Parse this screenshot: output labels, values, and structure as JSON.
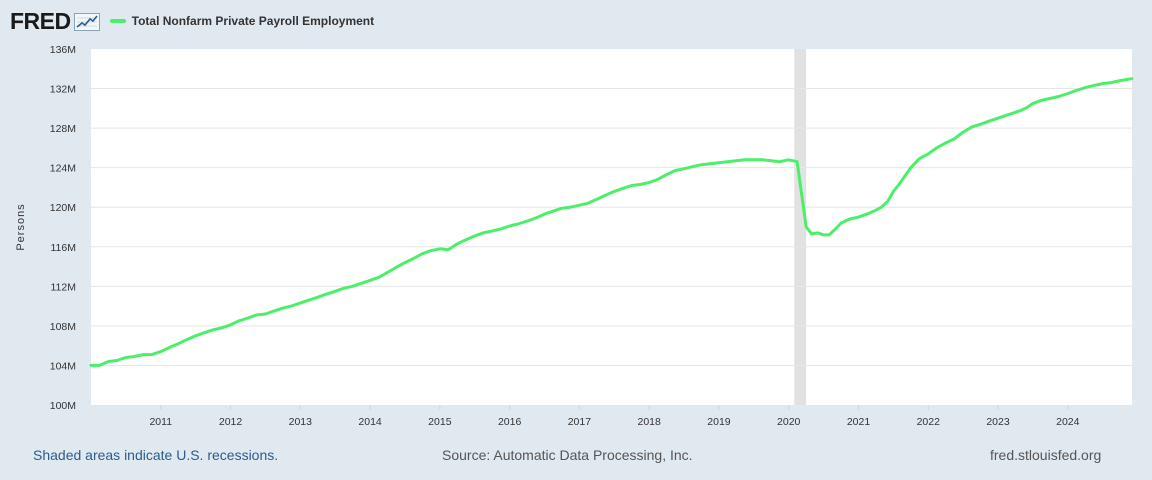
{
  "header": {
    "logo_text": "FRED",
    "logo_icon": "trend-chart-icon"
  },
  "footer": {
    "left": "Shaded areas indicate U.S. recessions.",
    "middle": "Source: Automatic Data Processing, Inc.",
    "right": "fred.stlouisfed.org"
  },
  "colors": {
    "background": "#e1e9f0",
    "plot_background": "#ffffff",
    "line": "#4cef6a",
    "recession": "#e1e1e1",
    "gridline": "#e6e6e6"
  },
  "chart_data": {
    "type": "line",
    "title": "",
    "xlabel": "",
    "ylabel": "Persons",
    "xlim": [
      2010.0,
      2024.92
    ],
    "ylim": [
      100,
      136
    ],
    "yticks": [
      100,
      104,
      108,
      112,
      116,
      120,
      124,
      128,
      132,
      136
    ],
    "ytick_labels": [
      "100M",
      "104M",
      "108M",
      "112M",
      "116M",
      "120M",
      "124M",
      "128M",
      "132M",
      "136M"
    ],
    "xticks": [
      2011,
      2012,
      2013,
      2014,
      2015,
      2016,
      2017,
      2018,
      2019,
      2020,
      2021,
      2022,
      2023,
      2024
    ],
    "xtick_labels": [
      "2011",
      "2012",
      "2013",
      "2014",
      "2015",
      "2016",
      "2017",
      "2018",
      "2019",
      "2020",
      "2021",
      "2022",
      "2023",
      "2024"
    ],
    "grid": true,
    "recessions": [
      [
        2020.08,
        2020.25
      ]
    ],
    "series": [
      {
        "name": "Total Nonfarm Private Payroll Employment",
        "x": [
          2010.0,
          2010.12,
          2010.25,
          2010.37,
          2010.5,
          2010.62,
          2010.75,
          2010.87,
          2011.0,
          2011.12,
          2011.25,
          2011.37,
          2011.5,
          2011.62,
          2011.75,
          2011.87,
          2012.0,
          2012.12,
          2012.25,
          2012.37,
          2012.5,
          2012.62,
          2012.75,
          2012.87,
          2013.0,
          2013.12,
          2013.25,
          2013.37,
          2013.5,
          2013.62,
          2013.75,
          2013.87,
          2014.0,
          2014.12,
          2014.25,
          2014.37,
          2014.5,
          2014.62,
          2014.75,
          2014.87,
          2015.0,
          2015.12,
          2015.25,
          2015.37,
          2015.5,
          2015.62,
          2015.75,
          2015.87,
          2016.0,
          2016.12,
          2016.25,
          2016.37,
          2016.5,
          2016.62,
          2016.75,
          2016.87,
          2017.0,
          2017.12,
          2017.25,
          2017.37,
          2017.5,
          2017.62,
          2017.75,
          2017.87,
          2018.0,
          2018.12,
          2018.25,
          2018.37,
          2018.5,
          2018.62,
          2018.75,
          2018.87,
          2019.0,
          2019.12,
          2019.25,
          2019.37,
          2019.5,
          2019.62,
          2019.75,
          2019.87,
          2020.0,
          2020.12,
          2020.25,
          2020.33,
          2020.42,
          2020.5,
          2020.58,
          2020.67,
          2020.75,
          2020.87,
          2021.0,
          2021.12,
          2021.25,
          2021.33,
          2021.42,
          2021.5,
          2021.58,
          2021.67,
          2021.75,
          2021.87,
          2022.0,
          2022.12,
          2022.25,
          2022.37,
          2022.5,
          2022.62,
          2022.75,
          2022.87,
          2023.0,
          2023.12,
          2023.25,
          2023.33,
          2023.42,
          2023.5,
          2023.62,
          2023.75,
          2023.87,
          2024.0,
          2024.12,
          2024.25,
          2024.37,
          2024.5,
          2024.62,
          2024.75,
          2024.92
        ],
        "values": [
          104.0,
          104.0,
          104.4,
          104.5,
          104.8,
          104.9,
          105.1,
          105.1,
          105.4,
          105.8,
          106.2,
          106.6,
          107.0,
          107.3,
          107.6,
          107.8,
          108.1,
          108.5,
          108.8,
          109.1,
          109.2,
          109.5,
          109.8,
          110.0,
          110.3,
          110.6,
          110.9,
          111.2,
          111.5,
          111.8,
          112.0,
          112.3,
          112.6,
          112.9,
          113.4,
          113.9,
          114.4,
          114.8,
          115.3,
          115.6,
          115.8,
          115.7,
          116.3,
          116.7,
          117.1,
          117.4,
          117.6,
          117.8,
          118.1,
          118.3,
          118.6,
          118.9,
          119.3,
          119.6,
          119.9,
          120.0,
          120.2,
          120.4,
          120.8,
          121.2,
          121.6,
          121.9,
          122.2,
          122.3,
          122.5,
          122.8,
          123.3,
          123.7,
          123.9,
          124.1,
          124.3,
          124.4,
          124.5,
          124.6,
          124.7,
          124.8,
          124.8,
          124.8,
          124.7,
          124.6,
          124.8,
          124.6,
          118.0,
          117.3,
          117.4,
          117.2,
          117.2,
          117.8,
          118.4,
          118.8,
          119.0,
          119.3,
          119.7,
          120.0,
          120.6,
          121.6,
          122.3,
          123.2,
          124.0,
          124.9,
          125.4,
          126.0,
          126.5,
          126.9,
          127.6,
          128.1,
          128.4,
          128.7,
          129.0,
          129.3,
          129.6,
          129.8,
          130.1,
          130.5,
          130.8,
          131.0,
          131.2,
          131.5,
          131.8,
          132.1,
          132.3,
          132.5,
          132.6,
          132.8,
          133.0
        ]
      }
    ]
  }
}
